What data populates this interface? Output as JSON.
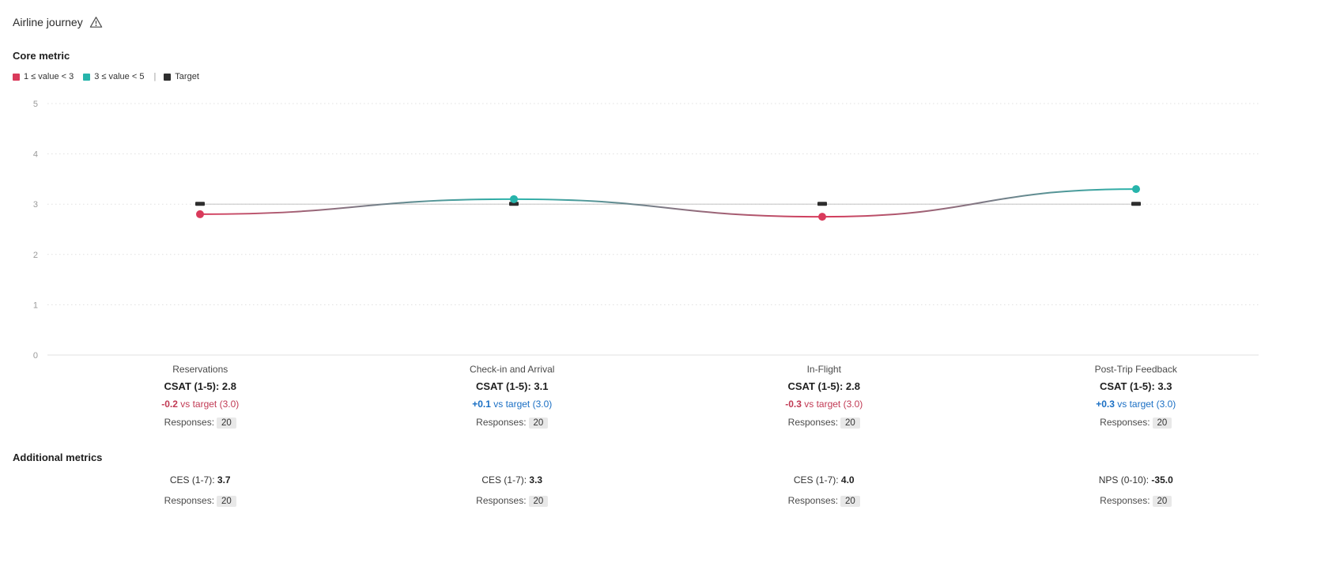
{
  "page": {
    "title": "Airline journey"
  },
  "core_metric": {
    "heading": "Core metric",
    "legend": [
      {
        "label": "1 ≤ value < 3",
        "color": "#d93a5b"
      },
      {
        "label": "3 ≤ value < 5",
        "color": "#27b4ab"
      },
      {
        "label": "Target",
        "color": "#2e2e2e"
      }
    ],
    "legend_separator": "|"
  },
  "chart_data": {
    "type": "line",
    "categories": [
      "Reservations",
      "Check-in and Arrival",
      "In-Flight",
      "Post-Trip Feedback"
    ],
    "series": [
      {
        "name": "CSAT (1-5)",
        "values": [
          2.8,
          3.1,
          2.75,
          3.3
        ]
      },
      {
        "name": "Target",
        "values": [
          3.0,
          3.0,
          3.0,
          3.0
        ]
      }
    ],
    "ylim": [
      0,
      5
    ],
    "yticks": [
      0,
      1,
      2,
      3,
      4,
      5
    ],
    "point_colors": [
      "#d93a5b",
      "#27b4ab",
      "#d93a5b",
      "#27b4ab"
    ],
    "target_color": "#2e2e2e",
    "target_line_color": "#c9c9c9",
    "grid": "dotted",
    "legend_position": "top-left"
  },
  "stages": [
    {
      "name": "Reservations",
      "metric_label": "CSAT (1-5):",
      "metric_value": "2.8",
      "delta": "-0.2",
      "delta_suffix": "vs target (3.0)",
      "delta_color": "#c13a54",
      "responses_label": "Responses:",
      "responses_value": "20"
    },
    {
      "name": "Check-in and Arrival",
      "metric_label": "CSAT (1-5):",
      "metric_value": "3.1",
      "delta": "+0.1",
      "delta_suffix": "vs target (3.0)",
      "delta_color": "#1a6fc4",
      "responses_label": "Responses:",
      "responses_value": "20"
    },
    {
      "name": "In-Flight",
      "metric_label": "CSAT (1-5):",
      "metric_value": "2.8",
      "delta": "-0.3",
      "delta_suffix": "vs target (3.0)",
      "delta_color": "#c13a54",
      "responses_label": "Responses:",
      "responses_value": "20"
    },
    {
      "name": "Post-Trip Feedback",
      "metric_label": "CSAT (1-5):",
      "metric_value": "3.3",
      "delta": "+0.3",
      "delta_suffix": "vs target (3.0)",
      "delta_color": "#1a6fc4",
      "responses_label": "Responses:",
      "responses_value": "20"
    }
  ],
  "additional_metrics": {
    "heading": "Additional metrics",
    "items": [
      {
        "label": "CES (1-7):",
        "value": "3.7",
        "responses_label": "Responses:",
        "responses_value": "20"
      },
      {
        "label": "CES (1-7):",
        "value": "3.3",
        "responses_label": "Responses:",
        "responses_value": "20"
      },
      {
        "label": "CES (1-7):",
        "value": "4.0",
        "responses_label": "Responses:",
        "responses_value": "20"
      },
      {
        "label": "NPS (0-10):",
        "value": "-35.0",
        "responses_label": "Responses:",
        "responses_value": "20"
      }
    ]
  }
}
